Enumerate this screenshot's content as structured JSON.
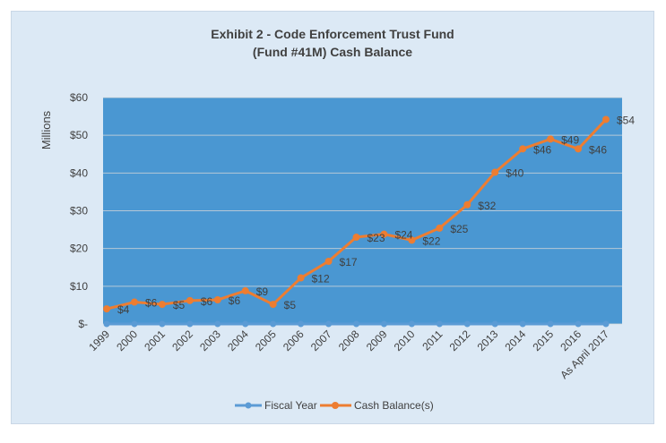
{
  "chart_data": {
    "type": "line",
    "title": "Exhibit 2 - Code Enforcement Trust Fund",
    "subtitle": "(Fund #41M) Cash Balance",
    "ylabel": "Millions",
    "xlabel": "",
    "ylim": [
      0,
      60
    ],
    "y_ticks": [
      0,
      10,
      20,
      30,
      40,
      50,
      60
    ],
    "y_tick_labels": [
      "$-",
      "$10",
      "$20",
      "$30",
      "$40",
      "$50",
      "$60"
    ],
    "categories": [
      "1999",
      "2000",
      "2001",
      "2002",
      "2003",
      "2004",
      "2005",
      "2006",
      "2007",
      "2008",
      "2009",
      "2010",
      "2011",
      "2012",
      "2013",
      "2014",
      "2015",
      "2016",
      "As April 2017"
    ],
    "series": [
      {
        "name": "Fiscal Year",
        "color": "#5b9bd5",
        "values": [
          0,
          0,
          0,
          0,
          0,
          0,
          0,
          0,
          0,
          0,
          0,
          0,
          0,
          0,
          0,
          0,
          0,
          0,
          0
        ]
      },
      {
        "name": "Cash Balance(s)",
        "color": "#ed7d31",
        "values": [
          4,
          5.8,
          5.2,
          6.2,
          6.4,
          8.8,
          5.2,
          12.2,
          16.6,
          23,
          23.8,
          22.2,
          25.4,
          31.6,
          40.2,
          46.4,
          49,
          46.4,
          54.2
        ],
        "labels": [
          "$4",
          "$6",
          "$5",
          "$6",
          "$6",
          "$9",
          "$5",
          "$12",
          "$17",
          "$23",
          "$24",
          "$22",
          "$25",
          "$32",
          "$40",
          "$46",
          "$49",
          "$46",
          "$54"
        ]
      }
    ],
    "grid": true,
    "plot_background": "#4a97d2",
    "chart_background": "#dce9f5",
    "legend_position": "bottom"
  }
}
